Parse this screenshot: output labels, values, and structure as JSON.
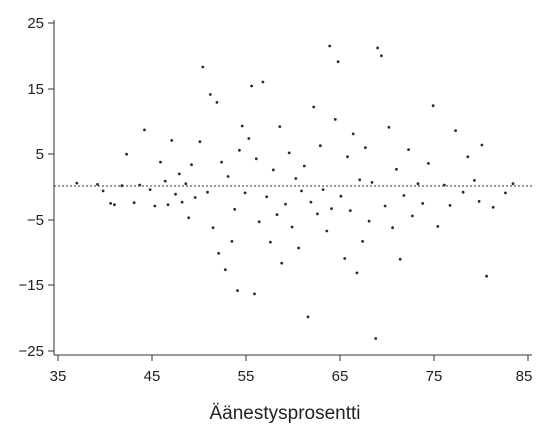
{
  "chart_data": {
    "type": "scatter",
    "title": "",
    "xlabel": "Äänestysprosentti",
    "ylabel": "",
    "xlim": [
      35,
      85
    ],
    "ylim": [
      -25,
      25
    ],
    "x_ticks": [
      "35",
      "45",
      "55",
      "65",
      "75",
      "85"
    ],
    "y_ticks": [
      "25",
      "15",
      "5",
      "−5",
      "−15",
      "−25"
    ],
    "reference_line": {
      "y": 0,
      "style": "dotted"
    },
    "grid": false,
    "legend": "none",
    "point_color": "#2b2b2b",
    "points": [
      [
        37.0,
        0.6
      ],
      [
        39.2,
        0.4
      ],
      [
        39.8,
        -0.6
      ],
      [
        40.6,
        -2.5
      ],
      [
        41.0,
        -2.7
      ],
      [
        41.8,
        0.2
      ],
      [
        42.3,
        5.0
      ],
      [
        43.1,
        -2.4
      ],
      [
        43.7,
        0.3
      ],
      [
        44.2,
        8.7
      ],
      [
        44.8,
        -0.4
      ],
      [
        45.3,
        -2.9
      ],
      [
        45.9,
        3.8
      ],
      [
        46.4,
        0.9
      ],
      [
        46.7,
        -2.7
      ],
      [
        47.1,
        7.1
      ],
      [
        47.5,
        -1.1
      ],
      [
        47.9,
        2.0
      ],
      [
        48.2,
        -2.3
      ],
      [
        48.6,
        0.5
      ],
      [
        48.9,
        -4.7
      ],
      [
        49.2,
        3.4
      ],
      [
        49.6,
        -1.6
      ],
      [
        50.1,
        6.9
      ],
      [
        50.4,
        18.3
      ],
      [
        50.9,
        -0.8
      ],
      [
        51.2,
        14.1
      ],
      [
        51.5,
        -6.2
      ],
      [
        51.9,
        12.9
      ],
      [
        52.1,
        -10.1
      ],
      [
        52.4,
        3.8
      ],
      [
        52.8,
        -12.6
      ],
      [
        53.1,
        1.6
      ],
      [
        53.5,
        -8.3
      ],
      [
        53.8,
        -3.4
      ],
      [
        54.1,
        -15.8
      ],
      [
        54.3,
        5.6
      ],
      [
        54.6,
        9.3
      ],
      [
        54.9,
        -0.9
      ],
      [
        55.3,
        7.4
      ],
      [
        55.6,
        15.4
      ],
      [
        55.9,
        -16.3
      ],
      [
        56.1,
        4.3
      ],
      [
        56.4,
        -5.3
      ],
      [
        56.8,
        16.0
      ],
      [
        57.2,
        -1.5
      ],
      [
        57.6,
        -8.4
      ],
      [
        57.9,
        2.6
      ],
      [
        58.3,
        -4.2
      ],
      [
        58.6,
        9.2
      ],
      [
        58.8,
        -11.6
      ],
      [
        59.2,
        -2.6
      ],
      [
        59.6,
        5.2
      ],
      [
        59.9,
        -6.1
      ],
      [
        60.3,
        1.3
      ],
      [
        60.6,
        -9.3
      ],
      [
        60.9,
        -0.6
      ],
      [
        61.2,
        3.2
      ],
      [
        61.6,
        -19.8
      ],
      [
        61.9,
        -2.3
      ],
      [
        62.2,
        12.2
      ],
      [
        62.6,
        -4.1
      ],
      [
        62.9,
        6.3
      ],
      [
        63.2,
        -0.4
      ],
      [
        63.6,
        -6.7
      ],
      [
        63.9,
        21.5
      ],
      [
        64.1,
        -3.3
      ],
      [
        64.5,
        10.3
      ],
      [
        64.8,
        19.1
      ],
      [
        65.1,
        -1.4
      ],
      [
        65.5,
        -10.9
      ],
      [
        65.8,
        4.6
      ],
      [
        66.1,
        -3.6
      ],
      [
        66.4,
        8.1
      ],
      [
        66.8,
        -13.1
      ],
      [
        67.1,
        1.1
      ],
      [
        67.4,
        -8.3
      ],
      [
        67.7,
        6.0
      ],
      [
        68.1,
        -5.2
      ],
      [
        68.4,
        0.7
      ],
      [
        68.8,
        -23.1
      ],
      [
        69.0,
        21.2
      ],
      [
        69.4,
        20.0
      ],
      [
        69.8,
        -2.9
      ],
      [
        70.2,
        9.1
      ],
      [
        70.6,
        -6.2
      ],
      [
        71.0,
        2.7
      ],
      [
        71.4,
        -11.0
      ],
      [
        71.8,
        -1.3
      ],
      [
        72.3,
        5.7
      ],
      [
        72.7,
        -4.4
      ],
      [
        73.3,
        0.5
      ],
      [
        73.8,
        -2.5
      ],
      [
        74.4,
        3.6
      ],
      [
        74.9,
        12.4
      ],
      [
        75.4,
        -6.0
      ],
      [
        76.1,
        0.3
      ],
      [
        76.7,
        -2.8
      ],
      [
        77.3,
        8.6
      ],
      [
        78.1,
        -0.8
      ],
      [
        78.6,
        4.6
      ],
      [
        79.3,
        1.0
      ],
      [
        79.8,
        -2.2
      ],
      [
        80.1,
        6.4
      ],
      [
        80.6,
        -13.6
      ],
      [
        81.3,
        -3.1
      ],
      [
        82.6,
        -0.9
      ],
      [
        83.4,
        0.5
      ]
    ]
  }
}
